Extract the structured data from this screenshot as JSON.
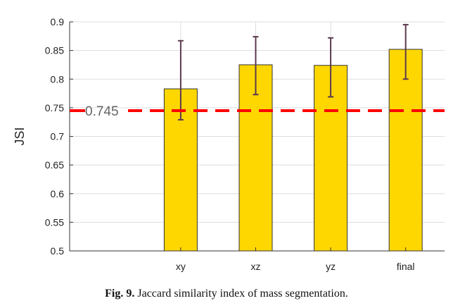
{
  "chart_data": {
    "type": "bar",
    "categories": [
      "xy",
      "xz",
      "yz",
      "final"
    ],
    "values": [
      0.783,
      0.825,
      0.824,
      0.852
    ],
    "error": [
      [
        0.729,
        0.867
      ],
      [
        0.773,
        0.874
      ],
      [
        0.769,
        0.872
      ],
      [
        0.8,
        0.895
      ]
    ],
    "xlabel": "",
    "ylabel": "JSI",
    "ylim": [
      0.5,
      0.9
    ],
    "yticks": [
      "0.5",
      "0.55",
      "0.6",
      "0.65",
      "0.7",
      "0.75",
      "0.8",
      "0.85",
      "0.9"
    ],
    "grid": true,
    "reference_line": {
      "value": 0.745,
      "label": "0.745"
    },
    "colors": {
      "bar": "#ffd700",
      "bar_edge": "#333333",
      "error": "#5a3a4e",
      "reference": "#ff0000",
      "grid": "#dddddd"
    }
  },
  "caption": {
    "label": "Fig. 9.",
    "text": "Jaccard similarity index of mass segmentation."
  }
}
